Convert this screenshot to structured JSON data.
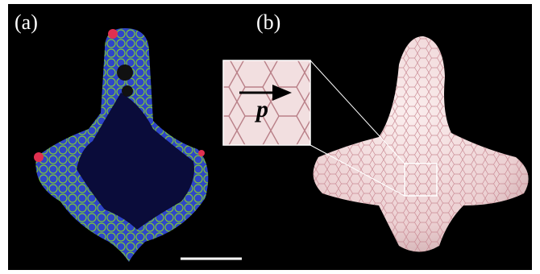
{
  "panels": [
    {
      "label": "(a)"
    },
    {
      "label": "(b)",
      "inset_label": "p"
    }
  ]
}
